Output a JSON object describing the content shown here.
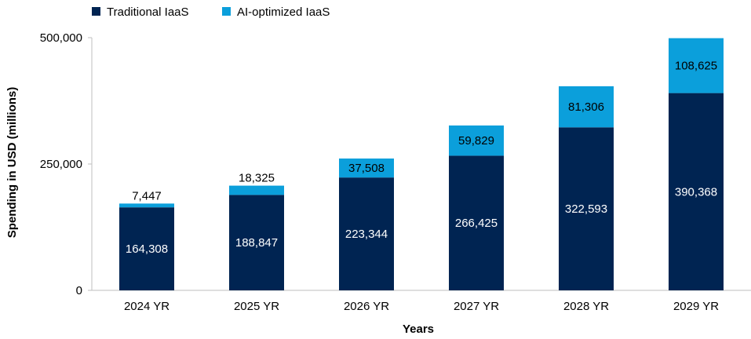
{
  "chart_data": {
    "type": "bar",
    "stacked": true,
    "categories": [
      "2024 YR",
      "2025 YR",
      "2026 YR",
      "2027 YR",
      "2028 YR",
      "2029 YR"
    ],
    "series": [
      {
        "name": "Traditional IaaS",
        "color": "#002452",
        "label_color": "#ffffff",
        "values": [
          164308,
          188847,
          223344,
          266425,
          322593,
          390368
        ]
      },
      {
        "name": "AI-optimized IaaS",
        "color": "#0B9FDB",
        "label_color": "#000000",
        "values": [
          7447,
          18325,
          37508,
          59829,
          81306,
          108625
        ]
      }
    ],
    "value_labels": [
      [
        "164,308",
        "188,847",
        "223,344",
        "266,425",
        "322,593",
        "390,368"
      ],
      [
        "7,447",
        "18,325",
        "37,508",
        "59,829",
        "81,306",
        "108,625"
      ]
    ],
    "xlabel": "Years",
    "ylabel": "Spending in USD (millions)",
    "ylim": [
      0,
      500000
    ],
    "yticks": [
      0,
      250000,
      500000
    ],
    "ytick_labels": [
      "0",
      "250,000",
      "500,000"
    ],
    "legend_position": "top-left",
    "grid": false
  }
}
